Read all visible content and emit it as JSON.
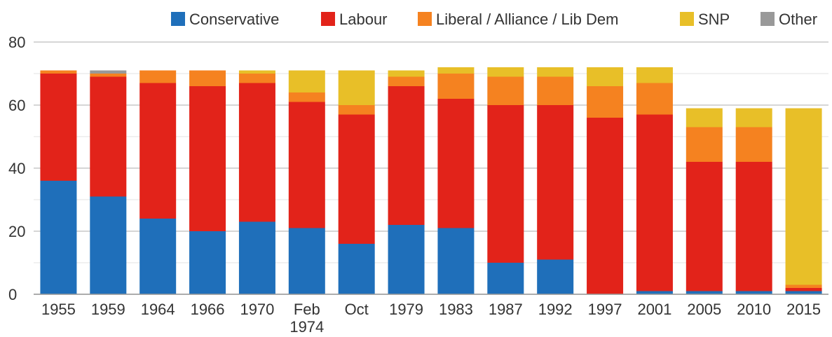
{
  "chart_data": {
    "type": "bar",
    "stacked": true,
    "title": "",
    "xlabel": "",
    "ylabel": "",
    "ylim": [
      0,
      80
    ],
    "yticks": [
      0,
      20,
      40,
      60,
      80
    ],
    "grid": true,
    "legend_position": "top-right",
    "categories": [
      "1955",
      "1959",
      "1964",
      "1966",
      "1970",
      "Feb 1974",
      "Oct 1974",
      "1979",
      "1983",
      "1987",
      "1992",
      "1997",
      "2001",
      "2005",
      "2010",
      "2015"
    ],
    "category_lines": [
      [
        "1955"
      ],
      [
        "1959"
      ],
      [
        "1964"
      ],
      [
        "1966"
      ],
      [
        "1970"
      ],
      [
        "Feb",
        "1974"
      ],
      [
        "Oct"
      ],
      [
        "1979"
      ],
      [
        "1983"
      ],
      [
        "1987"
      ],
      [
        "1992"
      ],
      [
        "1997"
      ],
      [
        "2001"
      ],
      [
        "2005"
      ],
      [
        "2010"
      ],
      [
        "2015"
      ]
    ],
    "series": [
      {
        "name": "Conservative",
        "color": "#1f6fba",
        "values": [
          36,
          31,
          24,
          20,
          23,
          21,
          16,
          22,
          21,
          10,
          11,
          0,
          1,
          1,
          1,
          1
        ]
      },
      {
        "name": "Labour",
        "color": "#e2231a",
        "values": [
          34,
          38,
          43,
          46,
          44,
          40,
          41,
          44,
          41,
          50,
          49,
          56,
          56,
          41,
          41,
          1
        ]
      },
      {
        "name": "Liberal / Alliance / Lib Dem",
        "color": "#f58220",
        "values": [
          1,
          1,
          4,
          5,
          3,
          3,
          3,
          3,
          8,
          9,
          9,
          10,
          10,
          11,
          11,
          1
        ]
      },
      {
        "name": "SNP",
        "color": "#e8bf28",
        "values": [
          0,
          0,
          0,
          0,
          1,
          7,
          11,
          2,
          2,
          3,
          3,
          6,
          5,
          6,
          6,
          56
        ]
      },
      {
        "name": "Other",
        "color": "#999999",
        "values": [
          0,
          1,
          0,
          0,
          0,
          0,
          0,
          0,
          0,
          0,
          0,
          0,
          0,
          0,
          0,
          0
        ]
      }
    ]
  }
}
